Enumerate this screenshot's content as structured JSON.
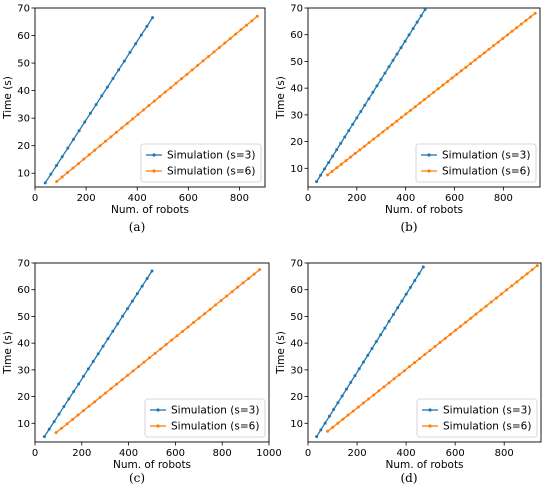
{
  "chart_data": [
    {
      "type": "line",
      "caption": "(a)",
      "xlabel": "Num. of robots",
      "ylabel": "Time (s)",
      "xlim": [
        0,
        900
      ],
      "ylim": [
        5,
        70
      ],
      "xticks": [
        0,
        200,
        400,
        600,
        800
      ],
      "yticks": [
        10,
        20,
        30,
        40,
        50,
        60,
        70
      ],
      "legend_position": "lower-right",
      "series": [
        {
          "name": "Simulation (s=3)",
          "color": "#1f77b4",
          "x": [
            40,
            460
          ],
          "y": [
            6.5,
            66.5
          ],
          "points": 20
        },
        {
          "name": "Simulation (s=6)",
          "color": "#ff7f0e",
          "x": [
            85,
            870
          ],
          "y": [
            7.0,
            67.0
          ],
          "points": 38
        }
      ]
    },
    {
      "type": "line",
      "caption": "(b)",
      "xlabel": "Num. of robots",
      "ylabel": "Time (s)",
      "xlim": [
        0,
        950
      ],
      "ylim": [
        3,
        70
      ],
      "xticks": [
        0,
        200,
        400,
        600,
        800
      ],
      "yticks": [
        10,
        20,
        30,
        40,
        50,
        60,
        70
      ],
      "legend_position": "lower-right",
      "series": [
        {
          "name": "Simulation (s=3)",
          "color": "#1f77b4",
          "x": [
            35,
            480
          ],
          "y": [
            5.0,
            69.5
          ],
          "points": 28
        },
        {
          "name": "Simulation (s=6)",
          "color": "#ff7f0e",
          "x": [
            80,
            930
          ],
          "y": [
            7.5,
            68.0
          ],
          "points": 46
        }
      ]
    },
    {
      "type": "line",
      "caption": "(c)",
      "xlabel": "Num. of robots",
      "ylabel": "Time (s)",
      "xlim": [
        0,
        1000
      ],
      "ylim": [
        3,
        70
      ],
      "xticks": [
        0,
        200,
        400,
        600,
        800,
        1000
      ],
      "yticks": [
        10,
        20,
        30,
        40,
        50,
        60,
        70
      ],
      "legend_position": "lower-right",
      "series": [
        {
          "name": "Simulation (s=3)",
          "color": "#1f77b4",
          "x": [
            40,
            500
          ],
          "y": [
            5.0,
            67.0
          ],
          "points": 23
        },
        {
          "name": "Simulation (s=6)",
          "color": "#ff7f0e",
          "x": [
            90,
            960
          ],
          "y": [
            6.5,
            67.5
          ],
          "points": 38
        }
      ]
    },
    {
      "type": "line",
      "caption": "(d)",
      "xlabel": "Num. of robots",
      "ylabel": "Time (s)",
      "xlim": [
        0,
        950
      ],
      "ylim": [
        3,
        70
      ],
      "xticks": [
        0,
        200,
        400,
        600,
        800
      ],
      "yticks": [
        10,
        20,
        30,
        40,
        50,
        60,
        70
      ],
      "legend_position": "lower-right",
      "series": [
        {
          "name": "Simulation (s=3)",
          "color": "#1f77b4",
          "x": [
            35,
            470
          ],
          "y": [
            5.0,
            68.5
          ],
          "points": 26
        },
        {
          "name": "Simulation (s=6)",
          "color": "#ff7f0e",
          "x": [
            80,
            935
          ],
          "y": [
            7.0,
            69.0
          ],
          "points": 42
        }
      ]
    }
  ]
}
